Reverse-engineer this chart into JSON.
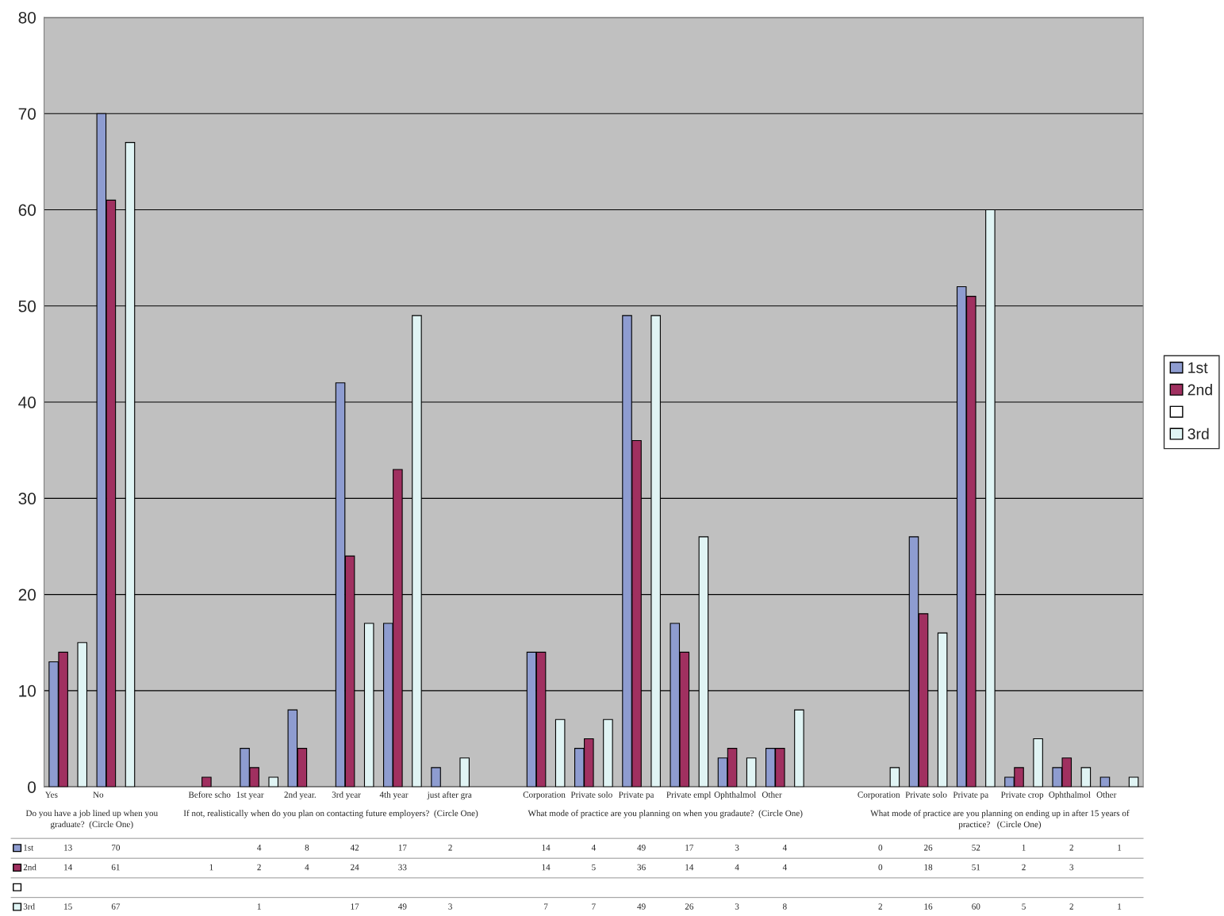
{
  "chart_data": {
    "type": "bar",
    "categories": [
      "Yes",
      "No",
      null,
      "Before scho",
      "1st year",
      "2nd year.",
      "3rd year",
      "4th year",
      "just after gra",
      null,
      "Corporation",
      "Private solo",
      "Private pa",
      "Private empl",
      "Ophthalmol",
      "Other",
      null,
      "Corporation",
      "Private solo",
      "Private pa",
      "Private crop",
      "Ophthalmol",
      "Other"
    ],
    "series": [
      {
        "name": "1st",
        "color": "#8e9cd0",
        "values": [
          13,
          70,
          null,
          null,
          4,
          8,
          42,
          17,
          2,
          null,
          14,
          4,
          49,
          17,
          3,
          4,
          null,
          0,
          26,
          52,
          1,
          2,
          1
        ]
      },
      {
        "name": "2nd",
        "color": "#a03060",
        "values": [
          14,
          61,
          null,
          1,
          2,
          4,
          24,
          33,
          null,
          null,
          14,
          5,
          36,
          14,
          4,
          4,
          null,
          0,
          18,
          51,
          2,
          3,
          null
        ]
      },
      {
        "color": "#ffffff",
        "values": [
          null,
          null,
          null,
          null,
          null,
          null,
          null,
          null,
          null,
          null,
          null,
          null,
          null,
          null,
          null,
          null,
          null,
          null,
          null,
          null,
          null,
          null,
          null
        ]
      },
      {
        "name": "3rd",
        "color": "#e0f4f4",
        "values": [
          15,
          67,
          null,
          null,
          1,
          null,
          17,
          49,
          3,
          null,
          7,
          7,
          49,
          26,
          3,
          8,
          null,
          2,
          16,
          60,
          5,
          2,
          1
        ]
      }
    ],
    "annotations": [
      "Do you have a job lined up when you\ngraduate?  (Circle One)",
      "If not, realistically when do you plan on contacting future employers?  (Circle One)",
      "What mode of practice are you planning on when you gradaute?  (Circle One)",
      "What mode of practice are you planning on ending up in after 15 years of\npractice?   (Circle One)"
    ],
    "ylim": [
      0,
      80
    ],
    "yticks": [
      0,
      10,
      20,
      30,
      40,
      50,
      60,
      70,
      80
    ],
    "grid": "y",
    "legend": "right",
    "data_labels": true
  }
}
